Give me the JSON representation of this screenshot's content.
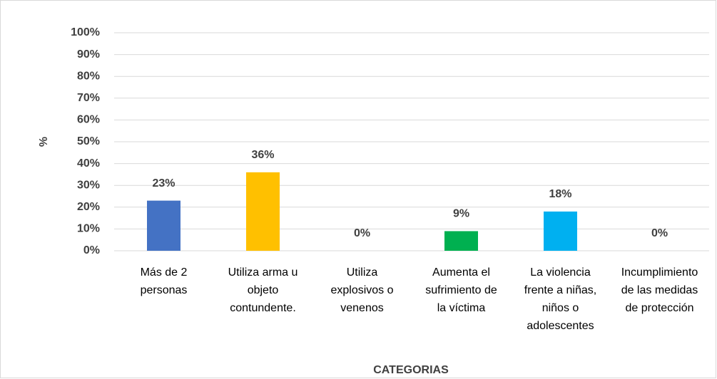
{
  "chart_data": {
    "type": "bar",
    "x_label": "CATEGORIAS",
    "y_label": "%",
    "categories": [
      [
        "Más de 2",
        "personas"
      ],
      [
        "Utiliza arma u",
        "objeto",
        "contundente."
      ],
      [
        "Utiliza",
        "explosivos o",
        "venenos"
      ],
      [
        "Aumenta el",
        "sufrimiento de",
        "la víctima"
      ],
      [
        "La violencia",
        "frente a niñas,",
        "niños o",
        "adolescentes"
      ],
      [
        "Incumplimiento",
        "de las medidas",
        "de protección"
      ]
    ],
    "values": [
      23,
      36,
      0,
      9,
      18,
      0
    ],
    "value_labels": [
      "23%",
      "36%",
      "0%",
      "9%",
      "18%",
      "0%"
    ],
    "colors": [
      "#4472c4",
      "#ffc000",
      null,
      "#00b050",
      "#00b0f0",
      null
    ],
    "ylim": [
      0,
      100
    ],
    "yticks": [
      {
        "value": 0,
        "label": "0%"
      },
      {
        "value": 10,
        "label": "10%"
      },
      {
        "value": 20,
        "label": "20%"
      },
      {
        "value": 30,
        "label": "30%"
      },
      {
        "value": 40,
        "label": "40%"
      },
      {
        "value": 50,
        "label": "50%"
      },
      {
        "value": 60,
        "label": "60%"
      },
      {
        "value": 70,
        "label": "70%"
      },
      {
        "value": 80,
        "label": "80%"
      },
      {
        "value": 90,
        "label": "90%"
      },
      {
        "value": 100,
        "label": "100%"
      }
    ],
    "grid": true
  }
}
